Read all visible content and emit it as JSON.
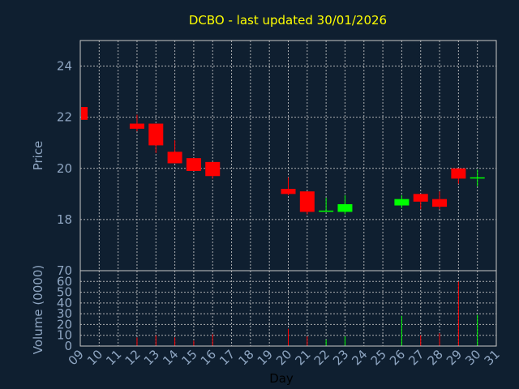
{
  "chart_data": {
    "type": "candlestick",
    "title": "DCBO - last updated 30/01/2026",
    "ylabel": "Price",
    "volume_label": "Volume (0000)",
    "xlabel": "Day",
    "grid": true,
    "price_ylim": [
      16.0,
      25.0
    ],
    "price_ticks": [
      "18",
      "20",
      "22",
      "24"
    ],
    "volume_ylim": [
      0,
      70
    ],
    "volume_ticks": [
      "0",
      "10",
      "20",
      "30",
      "40",
      "50",
      "60",
      "70"
    ],
    "x_ticks": [
      "09",
      "10",
      "11",
      "12",
      "13",
      "14",
      "15",
      "16",
      "17",
      "18",
      "19",
      "20",
      "21",
      "22",
      "23",
      "24",
      "25",
      "26",
      "27",
      "28",
      "29",
      "30",
      "31"
    ],
    "colors": {
      "up": "#00ff00",
      "down": "#ff0000"
    },
    "candles": [
      {
        "day": "09",
        "open": 22.4,
        "high": 22.4,
        "low": 21.9,
        "close": 21.9,
        "volume": 3
      },
      {
        "day": "12",
        "open": 21.75,
        "high": 22.1,
        "low": 21.45,
        "close": 21.55,
        "volume": 8
      },
      {
        "day": "13",
        "open": 21.75,
        "high": 21.75,
        "low": 20.6,
        "close": 20.9,
        "volume": 10
      },
      {
        "day": "14",
        "open": 20.65,
        "high": 21.1,
        "low": 20.2,
        "close": 20.2,
        "volume": 8
      },
      {
        "day": "15",
        "open": 20.4,
        "high": 20.4,
        "low": 19.9,
        "close": 19.9,
        "volume": 5
      },
      {
        "day": "16",
        "open": 20.25,
        "high": 20.25,
        "low": 19.6,
        "close": 19.7,
        "volume": 11
      },
      {
        "day": "20",
        "open": 19.2,
        "high": 19.65,
        "low": 18.95,
        "close": 19.0,
        "volume": 16
      },
      {
        "day": "21",
        "open": 19.1,
        "high": 19.1,
        "low": 18.2,
        "close": 18.3,
        "volume": 9
      },
      {
        "day": "22",
        "open": 18.35,
        "high": 18.85,
        "low": 18.3,
        "close": 18.35,
        "volume": 6
      },
      {
        "day": "23",
        "open": 18.3,
        "high": 18.95,
        "low": 18.2,
        "close": 18.6,
        "volume": 9
      },
      {
        "day": "26",
        "open": 18.55,
        "high": 18.95,
        "low": 18.45,
        "close": 18.8,
        "volume": 28
      },
      {
        "day": "27",
        "open": 19.0,
        "high": 19.0,
        "low": 18.4,
        "close": 18.7,
        "volume": 10
      },
      {
        "day": "28",
        "open": 18.8,
        "high": 19.1,
        "low": 18.4,
        "close": 18.5,
        "volume": 12
      },
      {
        "day": "29",
        "open": 20.0,
        "high": 20.0,
        "low": 19.4,
        "close": 19.6,
        "volume": 60
      },
      {
        "day": "30",
        "open": 19.65,
        "high": 19.95,
        "low": 19.3,
        "close": 19.65,
        "volume": 29
      }
    ]
  }
}
